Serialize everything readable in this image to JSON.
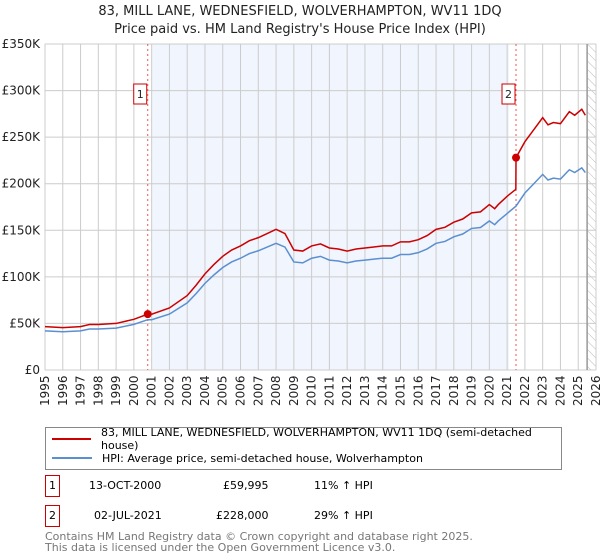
{
  "chart_data": {
    "type": "line",
    "title": "83, MILL LANE, WEDNESFIELD, WOLVERHAMPTON, WV11 1DQ",
    "subtitle": "Price paid vs. HM Land Registry's House Price Index (HPI)",
    "xlim": [
      1995,
      2026
    ],
    "ylim": [
      0,
      350000
    ],
    "y_ticks": [
      {
        "v": 0,
        "label": "£0"
      },
      {
        "v": 50000,
        "label": "£50K"
      },
      {
        "v": 100000,
        "label": "£100K"
      },
      {
        "v": 150000,
        "label": "£150K"
      },
      {
        "v": 200000,
        "label": "£200K"
      },
      {
        "v": 250000,
        "label": "£250K"
      },
      {
        "v": 300000,
        "label": "£300K"
      },
      {
        "v": 350000,
        "label": "£350K"
      }
    ],
    "x_ticks": [
      "1995",
      "1996",
      "1997",
      "1998",
      "1999",
      "2000",
      "2001",
      "2002",
      "2003",
      "2004",
      "2005",
      "2006",
      "2007",
      "2008",
      "2009",
      "2010",
      "2011",
      "2012",
      "2013",
      "2014",
      "2015",
      "2016",
      "2017",
      "2018",
      "2019",
      "2020",
      "2021",
      "2022",
      "2023",
      "2024",
      "2025",
      "2026"
    ],
    "grid": true,
    "shaded_range": [
      2001.0,
      2021.1
    ],
    "hatched_from": 2025.5,
    "series": [
      {
        "name": "83, MILL LANE, WEDNESFIELD, WOLVERHAMPTON, WV11 1DQ (semi-detached house)",
        "color": "#cc0000",
        "x": [
          1995,
          1996,
          1997,
          1997.5,
          1998,
          1999,
          2000,
          2000.78,
          2001,
          2002,
          2003,
          2003.5,
          2004,
          2004.5,
          2005,
          2005.5,
          2006,
          2006.5,
          2007,
          2007.5,
          2008,
          2008.5,
          2009,
          2009.5,
          2010,
          2010.5,
          2011,
          2011.5,
          2012,
          2012.5,
          2013,
          2013.5,
          2014,
          2014.5,
          2015,
          2015.5,
          2016,
          2016.5,
          2017,
          2017.5,
          2018,
          2018.5,
          2019,
          2019.5,
          2020,
          2020.3,
          2020.5,
          2021,
          2021.49,
          2021.5,
          2022,
          2022.5,
          2023,
          2023.3,
          2023.6,
          2024,
          2024.5,
          2024.8,
          2025.2,
          2025.4
        ],
        "y": [
          46600,
          45500,
          46600,
          48800,
          48800,
          50000,
          54400,
          59995,
          59900,
          66600,
          79900,
          91000,
          103200,
          113200,
          122100,
          128800,
          133200,
          138800,
          142100,
          146500,
          151000,
          146500,
          128800,
          127700,
          133200,
          135400,
          131000,
          129900,
          127700,
          129900,
          131000,
          132100,
          133200,
          133200,
          137600,
          137600,
          139900,
          144300,
          151000,
          153200,
          158700,
          162100,
          168700,
          169800,
          177600,
          173200,
          177600,
          186500,
          194000,
          228000,
          245100,
          258000,
          270900,
          263200,
          265700,
          264500,
          277400,
          273500,
          279900,
          273500
        ]
      },
      {
        "name": "HPI: Average price, semi-detached house, Wolverhampton",
        "color": "#5b8fd0",
        "x": [
          1995,
          1996,
          1997,
          1997.5,
          1998,
          1999,
          2000,
          2000.78,
          2001,
          2002,
          2003,
          2003.5,
          2004,
          2004.5,
          2005,
          2005.5,
          2006,
          2006.5,
          2007,
          2007.5,
          2008,
          2008.5,
          2009,
          2009.5,
          2010,
          2010.5,
          2011,
          2011.5,
          2012,
          2012.5,
          2013,
          2013.5,
          2014,
          2014.5,
          2015,
          2015.5,
          2016,
          2016.5,
          2017,
          2017.5,
          2018,
          2018.5,
          2019,
          2019.5,
          2020,
          2020.3,
          2020.5,
          2021,
          2021.5,
          2022,
          2022.5,
          2023,
          2023.3,
          2023.6,
          2024,
          2024.5,
          2024.8,
          2025.2,
          2025.4
        ],
        "y": [
          42000,
          41000,
          42000,
          44000,
          44000,
          45000,
          49000,
          54000,
          54000,
          60000,
          72000,
          82000,
          93000,
          102000,
          110000,
          116000,
          120000,
          125000,
          128000,
          132000,
          136000,
          132000,
          116000,
          115000,
          120000,
          122000,
          118000,
          117000,
          115000,
          117000,
          118000,
          119000,
          120000,
          120000,
          124000,
          124000,
          126000,
          130000,
          136000,
          138000,
          143000,
          146000,
          152000,
          153000,
          160000,
          156000,
          160000,
          168000,
          176000,
          190000,
          200000,
          210000,
          204000,
          206000,
          205000,
          215000,
          212000,
          217000,
          212000
        ]
      }
    ],
    "annotations": [
      {
        "label": "1",
        "x": 2000.78,
        "y": 59995
      },
      {
        "label": "2",
        "x": 2021.5,
        "y": 228000
      }
    ]
  },
  "legend": {
    "red": "83, MILL LANE, WEDNESFIELD, WOLVERHAMPTON, WV11 1DQ (semi-detached house)",
    "blue": "HPI: Average price, semi-detached house, Wolverhampton"
  },
  "transactions": [
    {
      "num": "1",
      "date": "13-OCT-2000",
      "price": "£59,995",
      "hpi": "11% ↑ HPI"
    },
    {
      "num": "2",
      "date": "02-JUL-2021",
      "price": "£228,000",
      "hpi": "29% ↑ HPI"
    }
  ],
  "footer": {
    "line1": "Contains HM Land Registry data © Crown copyright and database right 2025.",
    "line2": "This data is licensed under the Open Government Licence v3.0."
  }
}
